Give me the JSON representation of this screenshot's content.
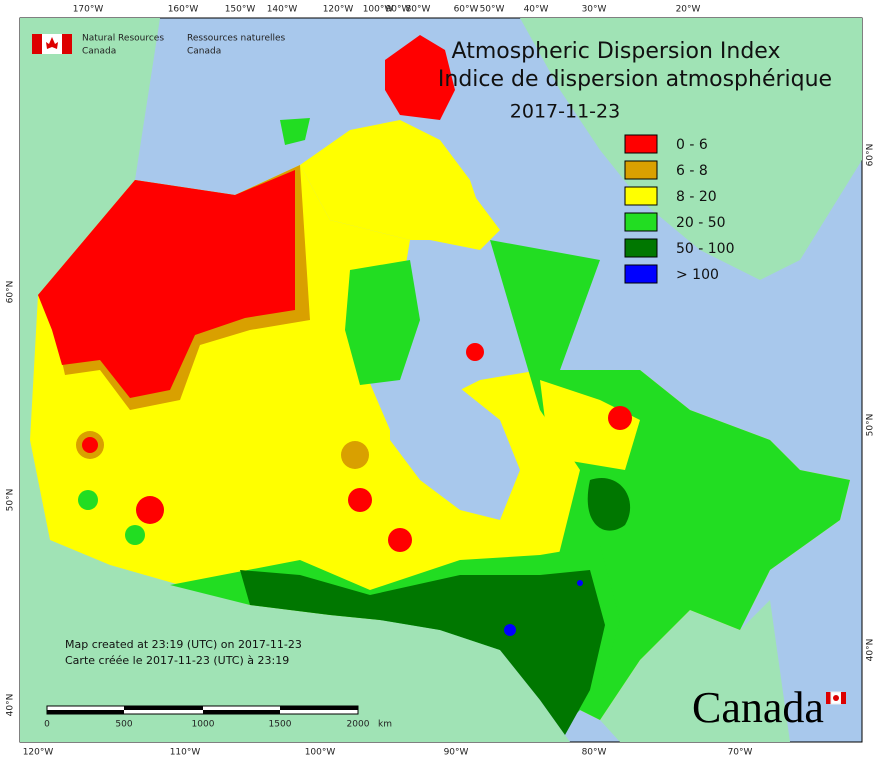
{
  "header": {
    "org_en": [
      "Natural Resources",
      "Canada"
    ],
    "org_fr": [
      "Ressources naturelles",
      "Canada"
    ]
  },
  "map": {
    "title": "Atmospheric Dispersion Index",
    "title_fr": "Indice de dispersion atmosphérique",
    "date": "2017-11-23",
    "legend": [
      {
        "label": "0 - 6",
        "color": "#ff0000"
      },
      {
        "label": "6 - 8",
        "color": "#d9a000"
      },
      {
        "label": "8 - 20",
        "color": "#ffff00"
      },
      {
        "label": "20 - 50",
        "color": "#22dd22"
      },
      {
        "label": "50 - 100",
        "color": "#007700"
      },
      {
        "label": "> 100",
        "color": "#0000ff"
      }
    ],
    "top_labels": [
      "170°W",
      "160°W",
      "150°W",
      "140°W",
      "120°W",
      "100°W",
      "90°W",
      "80°W",
      "60°W",
      "50°W",
      "40°W",
      "30°W",
      "20°W"
    ],
    "bottom_labels": [
      "120°W",
      "110°W",
      "100°W",
      "90°W",
      "80°W",
      "70°W"
    ],
    "left_labels": [
      "60°N",
      "50°N",
      "40°N"
    ],
    "right_labels": [
      "60°N",
      "50°N",
      "40°N"
    ],
    "credit": [
      "Map created at 23:19 (UTC) on 2017-11-23",
      "Carte créée le 2017-11-23 (UTC) à 23:19"
    ],
    "scale": {
      "ticks": [
        0,
        500,
        1000,
        1500,
        2000
      ],
      "unit": "km"
    },
    "wordmark": "Canada"
  }
}
